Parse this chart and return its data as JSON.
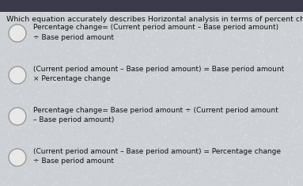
{
  "title": "Which equation accurately describes Horizontal analysis in terms of percent change?",
  "title_fontsize": 6.8,
  "options": [
    "Percentage change= (Current period amount – Base period amount)\n÷ Base period amount",
    "(Current period amount – Base period amount) = Base period amount\n× Percentage change",
    "Percentage change= Base period amount ÷ (Current period amount\n– Base period amount)",
    "(Current period amount – Base period amount) = Percentage change\n÷ Base period amount"
  ],
  "option_fontsize": 6.5,
  "bg_color": "#cdd1d5",
  "text_color": "#111111",
  "circle_facecolor": "#e8e8e8",
  "circle_edge_color": "#999999"
}
